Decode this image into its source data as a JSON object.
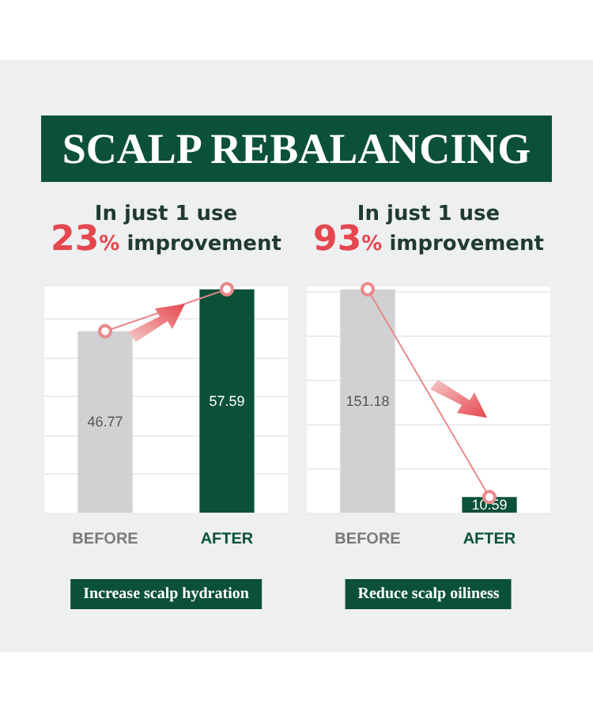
{
  "chart_data": [
    {
      "type": "bar",
      "title": "SCALP REBALANCING",
      "subtitle": "In just 1 use\n23% improvement",
      "xlabel": "Increase scalp hydration",
      "categories": [
        "BEFORE",
        "AFTER"
      ],
      "series": [
        {
          "colors": [
            "#d1d1d3",
            "#0b5138"
          ],
          "values": [
            46.77,
            57.59
          ],
          "value_labels": [
            "46.77",
            "57.59"
          ]
        },
        {
          "type": "line",
          "color": "#e8898b",
          "values": [
            46.77,
            57.59
          ]
        }
      ],
      "marker": "circle",
      "grid": true,
      "tick_labels": "x"
    },
    {
      "type": "bar",
      "subtitle": "In just 1 use\n93% improvement",
      "xlabel": "Reduce scalp oiliness",
      "categories": [
        "BEFORE",
        "AFTER"
      ],
      "series": [
        {
          "colors": [
            "#d1d1d3",
            "#0b5138"
          ],
          "values": [
            151.18,
            10.59
          ],
          "value_labels": [
            "151.18",
            "10.59"
          ]
        },
        {
          "type": "line",
          "color": "#e8898b",
          "values": [
            151.18,
            10.59
          ]
        }
      ],
      "marker": "circle",
      "grid": true,
      "tick_labels": "x"
    }
  ]
}
